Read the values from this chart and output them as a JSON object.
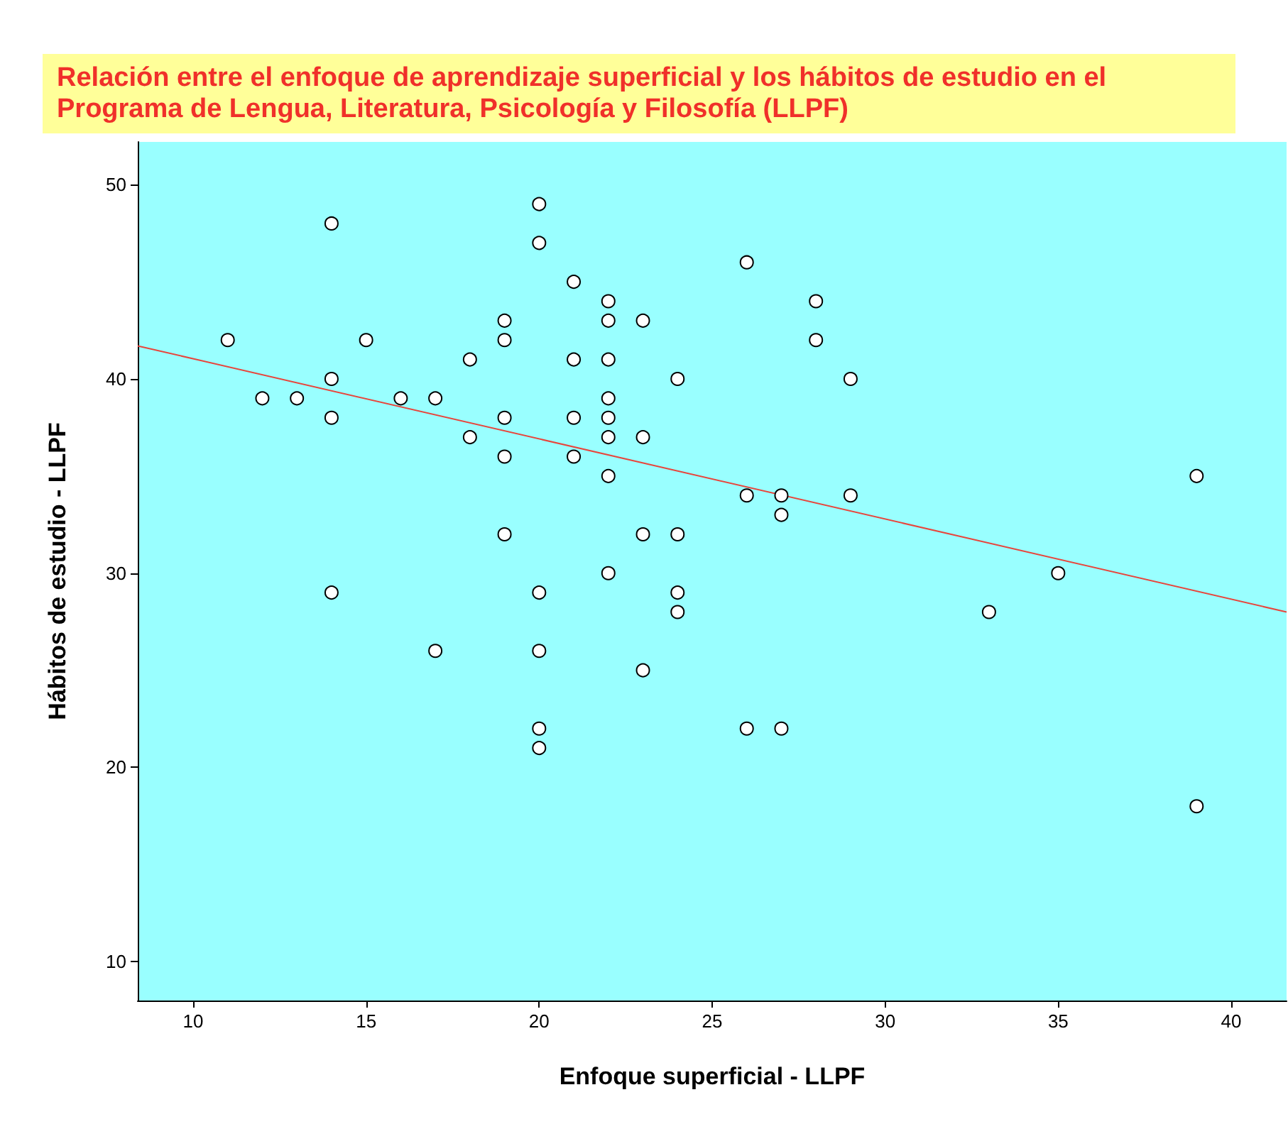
{
  "chart_data": {
    "type": "scatter",
    "title": "Relación entre el enfoque de aprendizaje superficial y los hábitos de estudio en el Programa de Lengua, Literatura, Psicología y Filosofía (LLPF)",
    "xlabel": "Enfoque superficial - LLPF",
    "ylabel": "Hábitos de estudio - LLPF",
    "xlim": [
      8.4,
      41.6
    ],
    "ylim": [
      8,
      52.2
    ],
    "xticks": [
      10,
      15,
      20,
      25,
      30,
      35,
      40
    ],
    "yticks": [
      10,
      20,
      30,
      40,
      50
    ],
    "grid": false,
    "marker": "circle",
    "series": [
      {
        "color": "#ffffff",
        "x": [
          11,
          12,
          13,
          14,
          14,
          14,
          14,
          15,
          16,
          17,
          17,
          18,
          18,
          19,
          19,
          19,
          19,
          19,
          20,
          20,
          20,
          20,
          20,
          20,
          21,
          21,
          21,
          21,
          22,
          22,
          22,
          22,
          22,
          22,
          22,
          22,
          23,
          23,
          23,
          23,
          24,
          24,
          24,
          24,
          26,
          26,
          26,
          27,
          27,
          27,
          28,
          28,
          29,
          29,
          33,
          35,
          39,
          39
        ],
        "values": [
          42,
          39,
          39,
          48,
          40,
          38,
          29,
          42,
          39,
          39,
          26,
          41,
          37,
          43,
          42,
          38,
          36,
          32,
          49,
          47,
          29,
          26,
          22,
          21,
          45,
          41,
          38,
          36,
          44,
          43,
          41,
          39,
          38,
          37,
          35,
          30,
          43,
          37,
          32,
          25,
          40,
          32,
          29,
          28,
          46,
          34,
          22,
          34,
          33,
          22,
          44,
          42,
          40,
          34,
          28,
          30,
          35,
          18
        ]
      },
      {
        "type": "line",
        "color": "#e8453c",
        "x": [
          8.4,
          41.6
        ],
        "values": [
          41.7,
          28.0
        ],
        "marker": "none"
      }
    ]
  }
}
